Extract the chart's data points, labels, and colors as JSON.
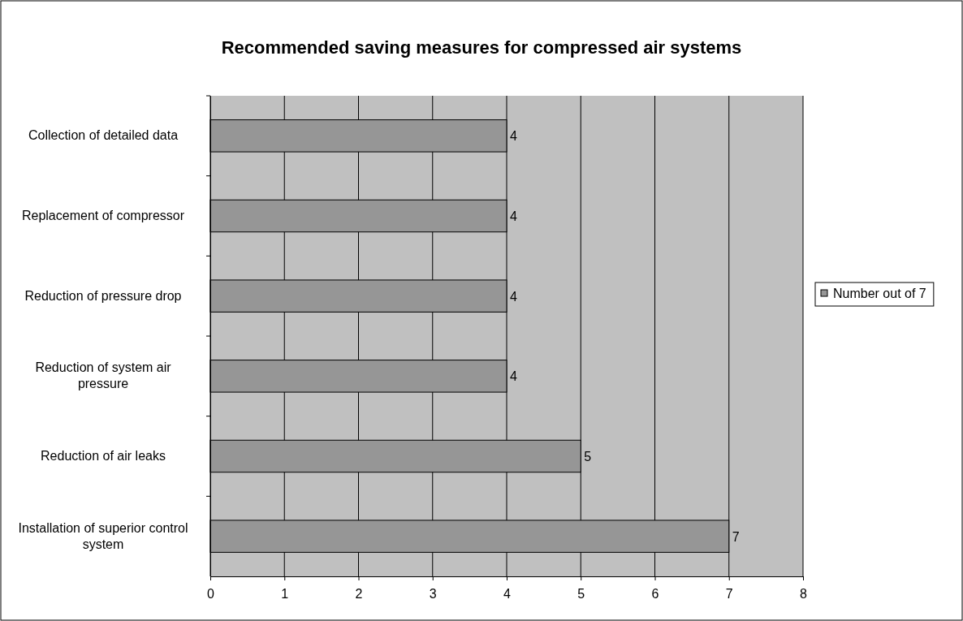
{
  "chart_data": {
    "type": "bar",
    "orientation": "horizontal",
    "title": "Recommended saving measures for compressed air systems",
    "categories": [
      "Collection of detailed data",
      "Replacement of compressor",
      "Reduction of pressure drop",
      "Reduction of system air pressure",
      "Reduction of air leaks",
      "Installation of superior control system"
    ],
    "series": [
      {
        "name": "Number out of 7",
        "color": "#969696",
        "values": [
          4,
          4,
          4,
          4,
          5,
          7
        ]
      }
    ],
    "xlim": [
      0,
      8
    ],
    "xticks": [
      0,
      1,
      2,
      3,
      4,
      5,
      6,
      7,
      8
    ],
    "grid": "x",
    "legend": "right",
    "data_labels": true
  }
}
